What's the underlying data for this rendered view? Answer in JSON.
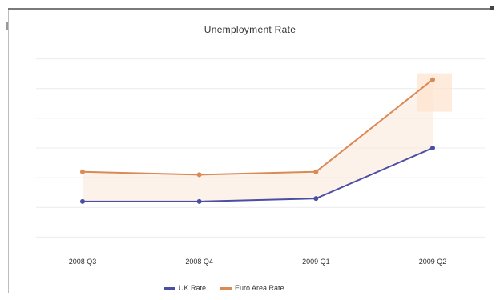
{
  "chart_data": {
    "type": "line",
    "title": "Unemployment Rate",
    "categories": [
      "2008 Q3",
      "2008 Q4",
      "2009 Q1",
      "2009 Q2"
    ],
    "series": [
      {
        "name": "UK Rate",
        "color": "#4a4fa3",
        "values": [
          5.2,
          5.2,
          5.3,
          7.0
        ]
      },
      {
        "name": "Euro Area Rate",
        "color": "#d98a55",
        "values": [
          6.2,
          6.1,
          6.2,
          9.3
        ]
      }
    ],
    "ylim": [
      3.5,
      10.5
    ],
    "grid": true,
    "legend_position": "bottom-right"
  }
}
